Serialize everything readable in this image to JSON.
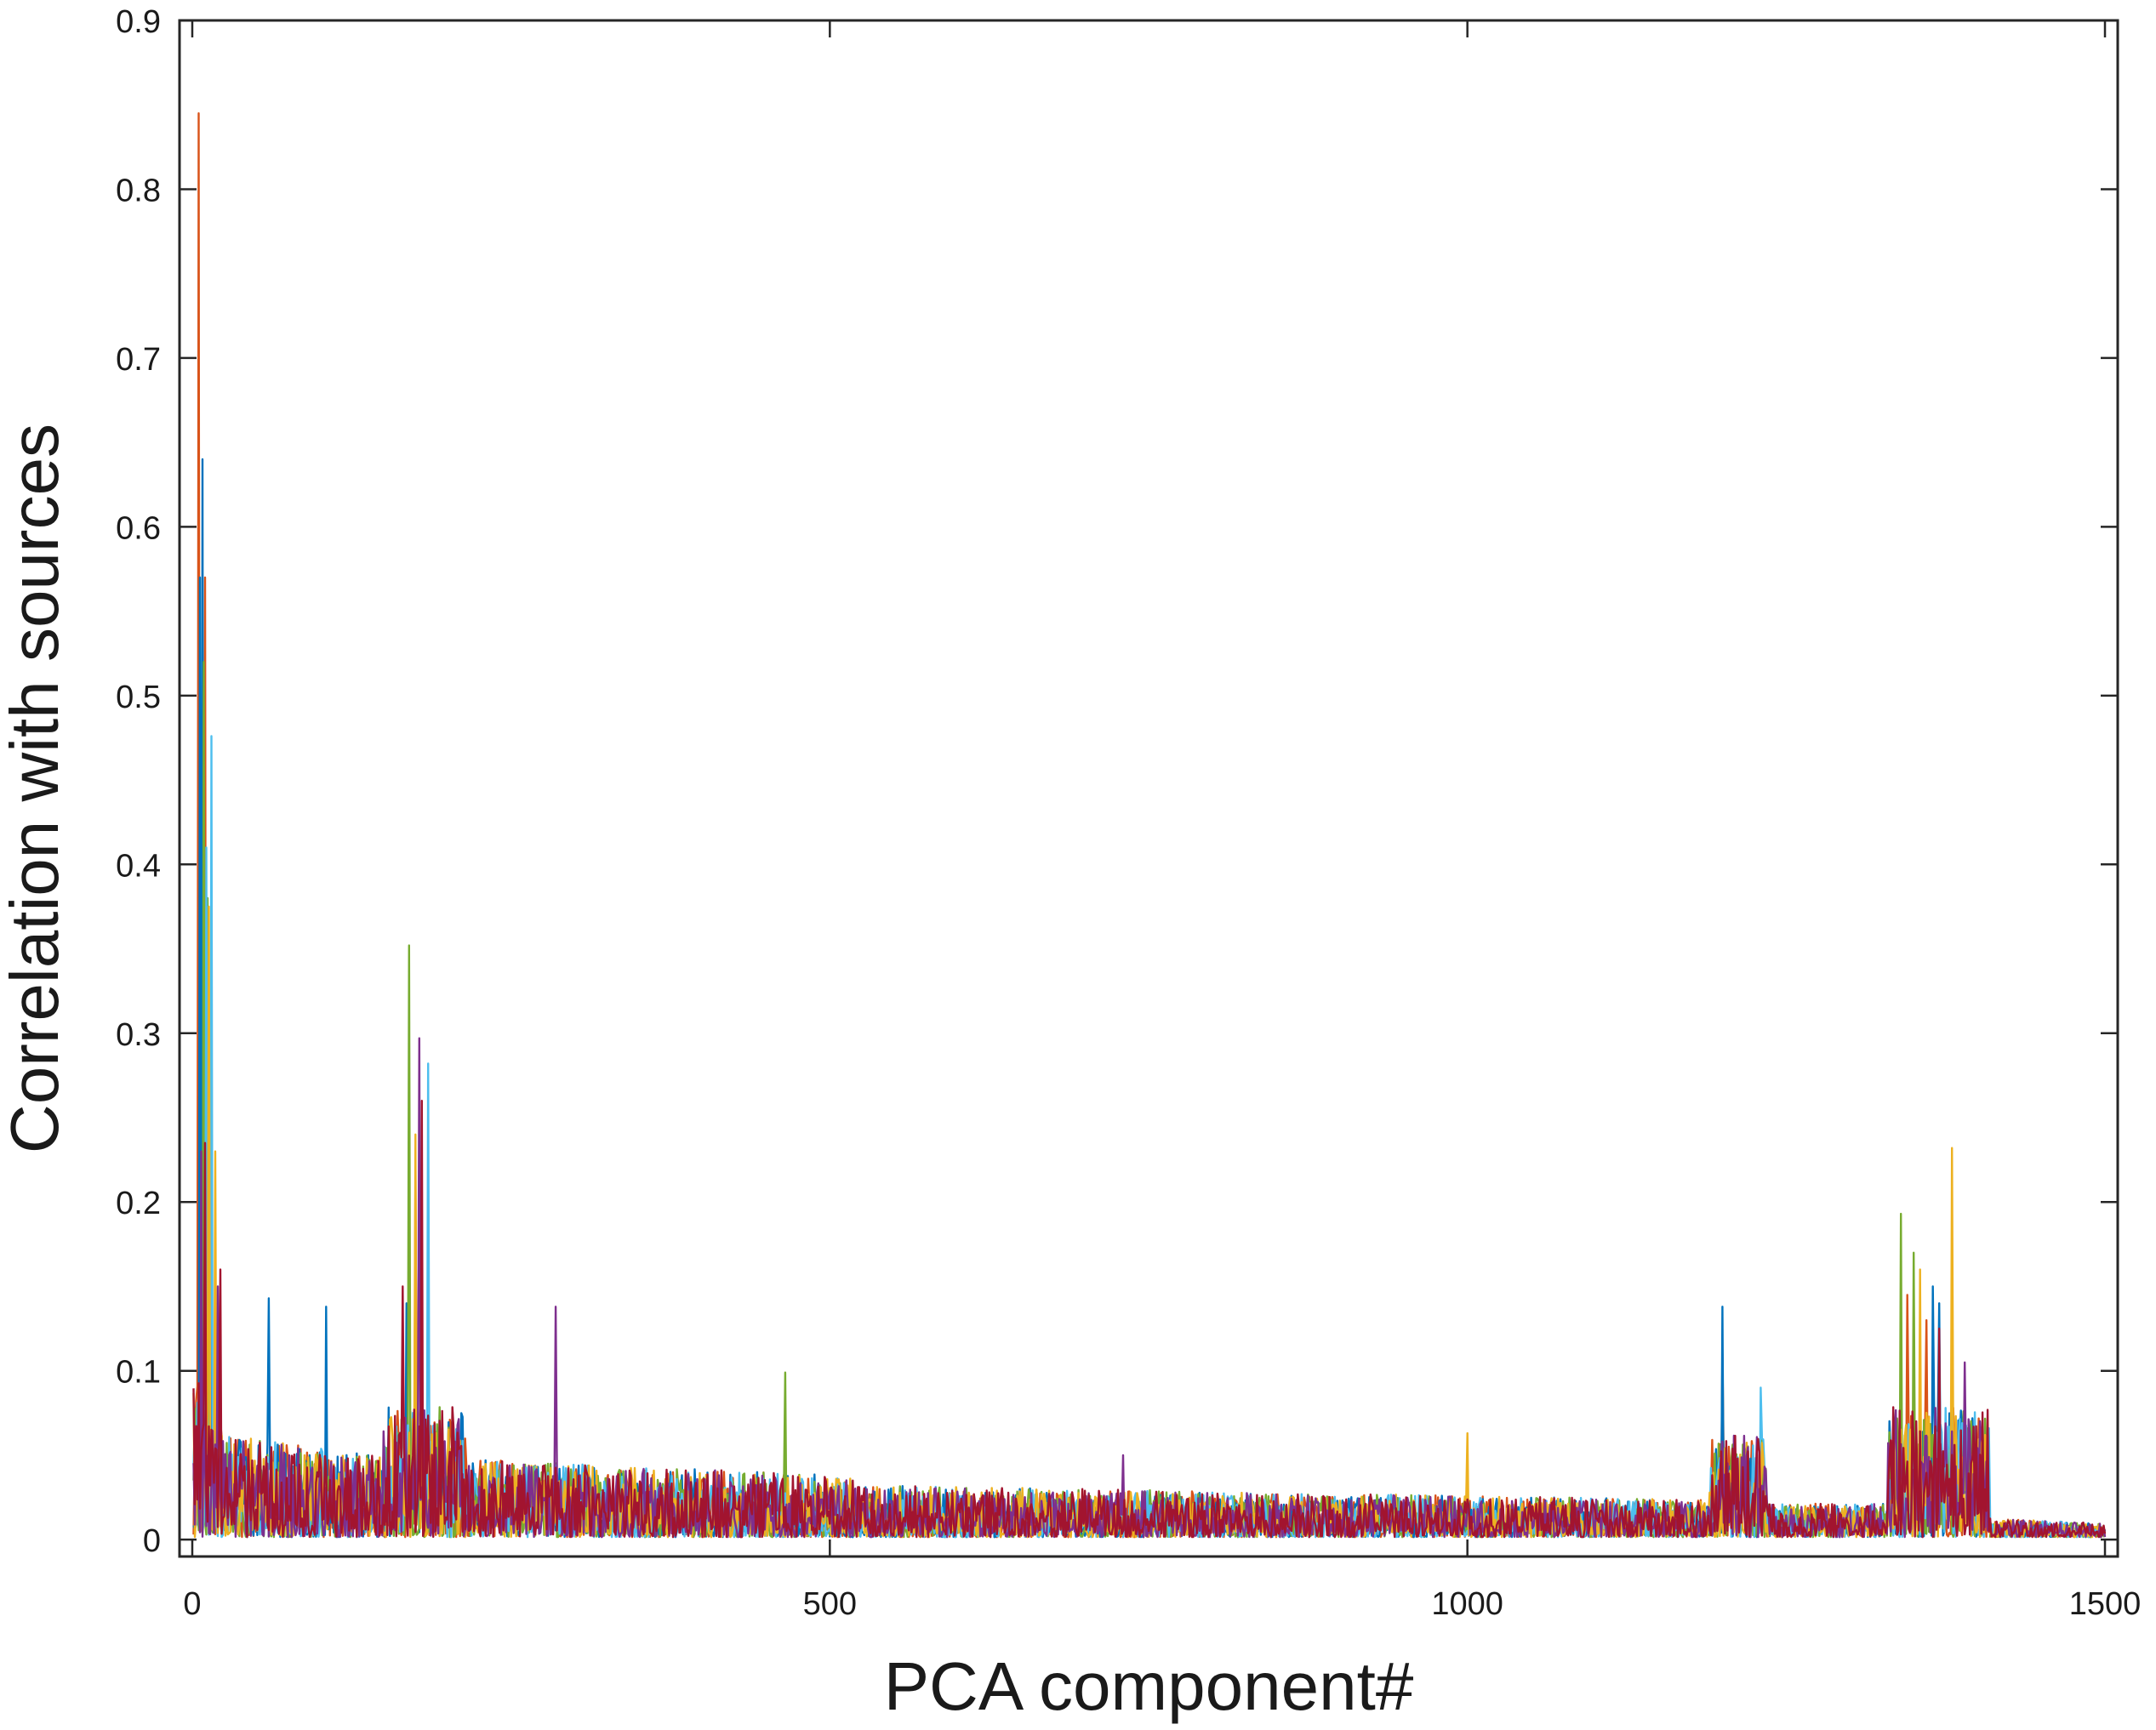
{
  "chart_data": {
    "type": "line",
    "title": "",
    "xlabel": "PCA component#",
    "ylabel": "Correlation with sources",
    "xlim": [
      -10,
      1510
    ],
    "ylim": [
      -0.01,
      0.9
    ],
    "xticks": [
      0,
      500,
      1000,
      1500
    ],
    "yticks": [
      0,
      0.1,
      0.2,
      0.3,
      0.4,
      0.5,
      0.6,
      0.7,
      0.8,
      0.9
    ],
    "xtick_labels": [
      "0",
      "500",
      "1000",
      "1500"
    ],
    "ytick_labels": [
      "0",
      "0.1",
      "0.2",
      "0.3",
      "0.4",
      "0.5",
      "0.6",
      "0.7",
      "0.8",
      "0.9"
    ],
    "grid": false,
    "legend": "none",
    "x_domain": [
      1,
      1500
    ],
    "series": [
      {
        "color": "#D95319",
        "peaks": [
          [
            5,
            0.845
          ],
          [
            10,
            0.57
          ],
          [
            175,
            0.22
          ],
          [
            1200,
            0.11
          ],
          [
            1345,
            0.145
          ],
          [
            1360,
            0.13
          ]
        ]
      },
      {
        "color": "#0072BD",
        "peaks": [
          [
            8,
            0.64
          ],
          [
            6,
            0.57
          ],
          [
            14,
            0.26
          ],
          [
            60,
            0.143
          ],
          [
            105,
            0.138
          ],
          [
            168,
            0.14
          ],
          [
            1200,
            0.138
          ],
          [
            1365,
            0.15
          ],
          [
            1370,
            0.14
          ]
        ]
      },
      {
        "color": "#77AC30",
        "peaks": [
          [
            9,
            0.52
          ],
          [
            12,
            0.38
          ],
          [
            170,
            0.352
          ],
          [
            465,
            0.099
          ],
          [
            1340,
            0.193
          ],
          [
            1350,
            0.17
          ]
        ]
      },
      {
        "color": "#4DBEEE",
        "peaks": [
          [
            15,
            0.476
          ],
          [
            11,
            0.41
          ],
          [
            185,
            0.282
          ],
          [
            1230,
            0.09
          ],
          [
            1380,
            0.11
          ]
        ]
      },
      {
        "color": "#EDB120",
        "peaks": [
          [
            13,
            0.375
          ],
          [
            18,
            0.23
          ],
          [
            175,
            0.24
          ],
          [
            1000,
            0.063
          ],
          [
            1355,
            0.16
          ],
          [
            1380,
            0.232
          ]
        ]
      },
      {
        "color": "#7E2F8E",
        "peaks": [
          [
            7,
            0.23
          ],
          [
            20,
            0.15
          ],
          [
            178,
            0.297
          ],
          [
            285,
            0.138
          ],
          [
            730,
            0.05
          ],
          [
            1390,
            0.105
          ]
        ]
      },
      {
        "color": "#A2142F",
        "peaks": [
          [
            10,
            0.235
          ],
          [
            22,
            0.16
          ],
          [
            180,
            0.26
          ],
          [
            165,
            0.15
          ],
          [
            1370,
            0.125
          ]
        ]
      }
    ]
  }
}
